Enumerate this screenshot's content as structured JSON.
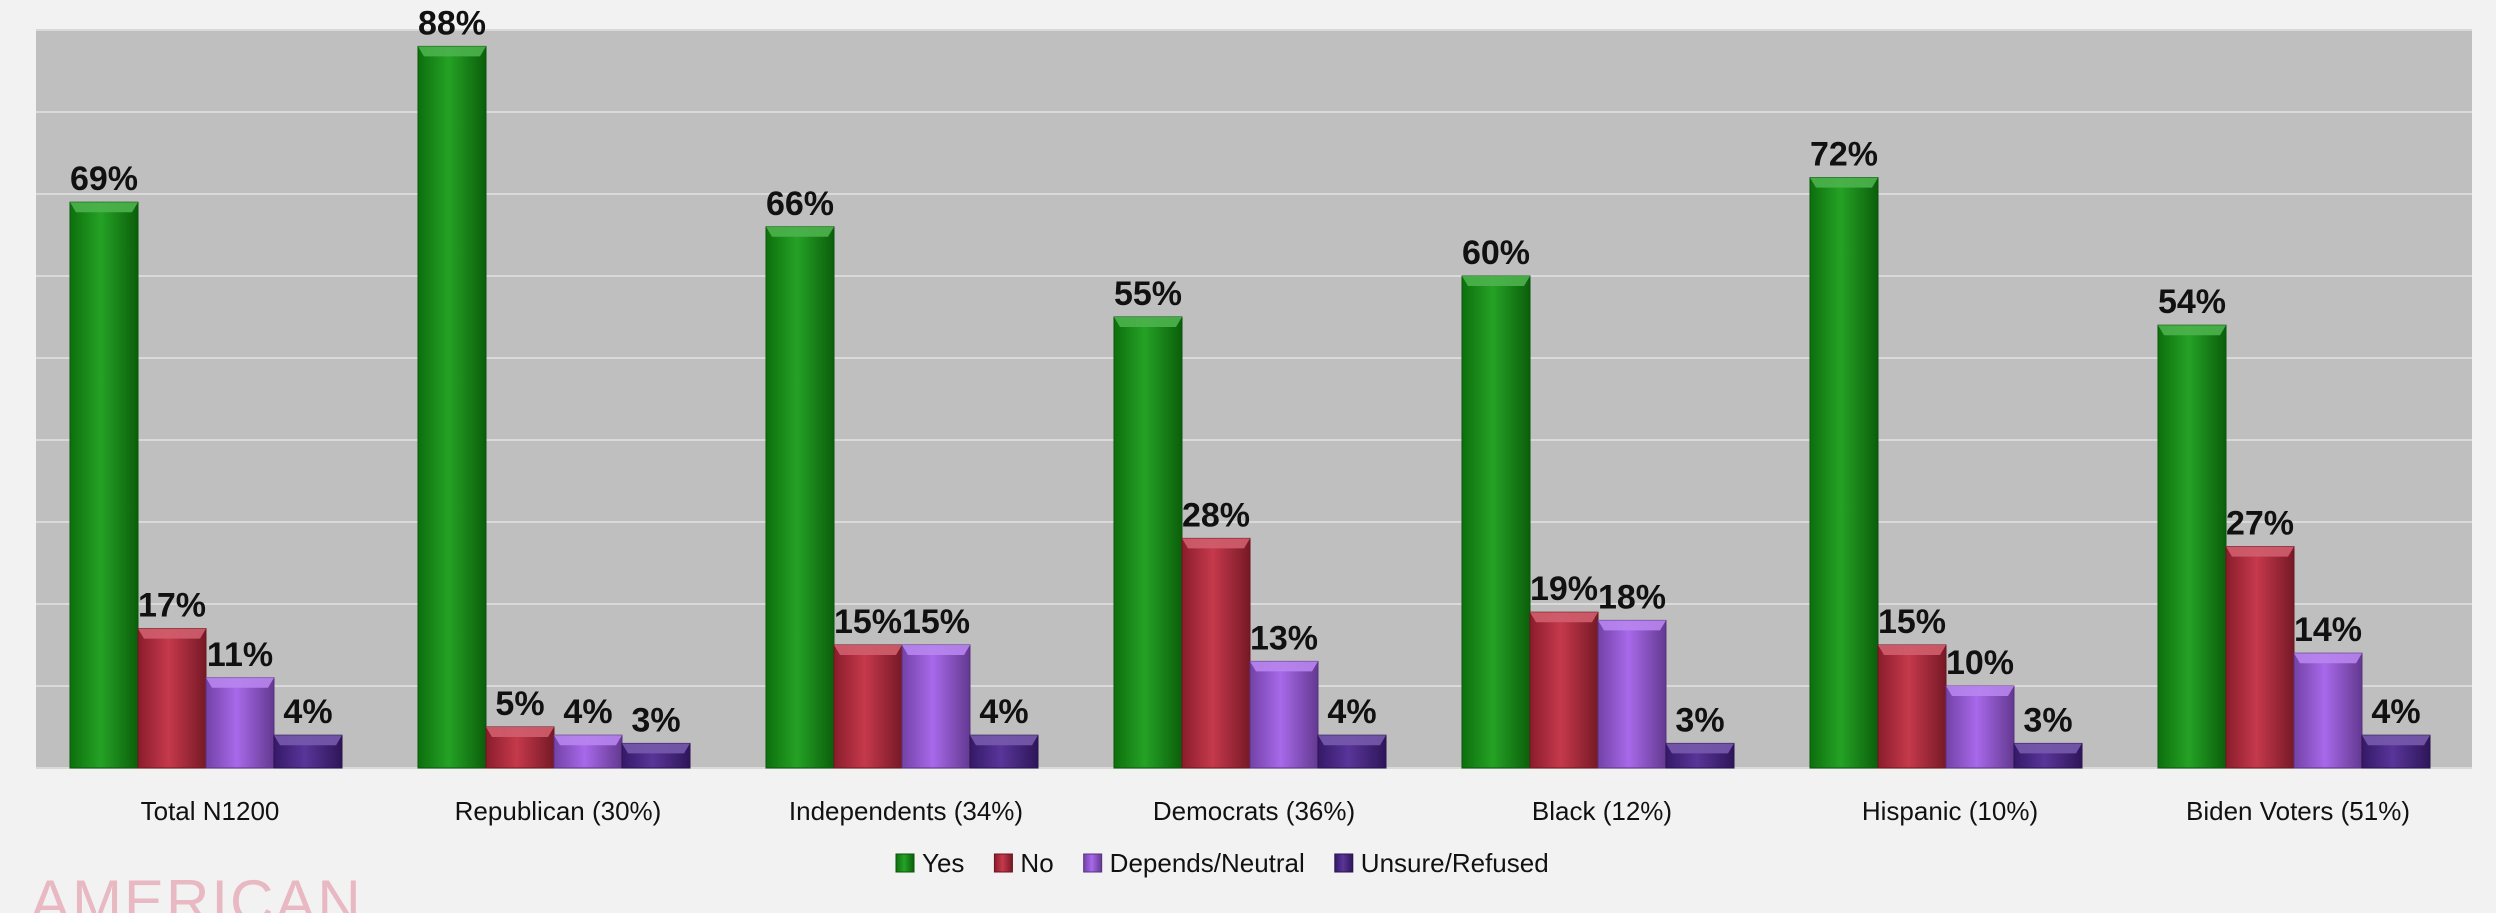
{
  "chart_data": {
    "type": "bar",
    "categories": [
      "Total N1200",
      "Republican (30%)",
      "Independents (34%)",
      "Democrats (36%)",
      "Black (12%)",
      "Hispanic (10%)",
      "Biden Voters (51%)"
    ],
    "series": [
      {
        "name": "Yes",
        "values": [
          69,
          88,
          66,
          55,
          60,
          72,
          54
        ],
        "color": "#129a12"
      },
      {
        "name": "No",
        "values": [
          17,
          5,
          15,
          28,
          19,
          15,
          27
        ],
        "color": "#c0283c"
      },
      {
        "name": "Depends/Neutral",
        "values": [
          11,
          4,
          15,
          13,
          18,
          10,
          14
        ],
        "color": "#a05ce8"
      },
      {
        "name": "Unsure/Refused",
        "values": [
          4,
          3,
          4,
          4,
          3,
          3,
          4
        ],
        "color": "#4a2390"
      }
    ],
    "value_suffix": "%",
    "ylim": [
      0,
      90
    ],
    "grid": true,
    "legend_position": "bottom"
  },
  "watermark": "AMERICAN"
}
